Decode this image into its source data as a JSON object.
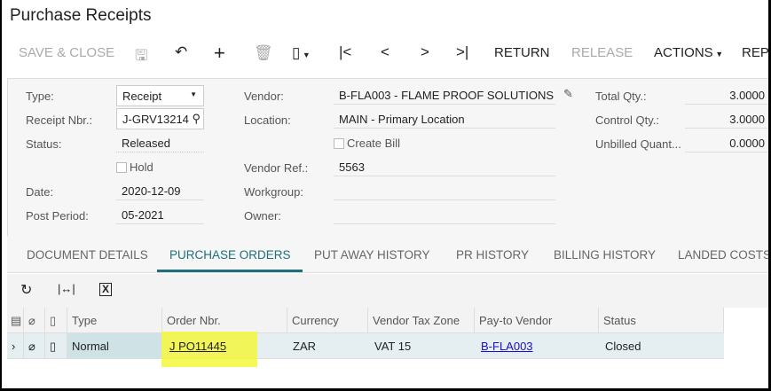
{
  "title": "Purchase Receipts",
  "toolbar": {
    "save_close": "SAVE & CLOSE",
    "return": "RETURN",
    "release": "RELEASE",
    "actions": "ACTIONS",
    "reports": "REP"
  },
  "form": {
    "type_label": "Type:",
    "type_value": "Receipt",
    "receipt_label": "Receipt Nbr.:",
    "receipt_value": "J-GRV13214",
    "status_label": "Status:",
    "status_value": "Released",
    "hold_label": "Hold",
    "date_label": "Date:",
    "date_value": "2020-12-09",
    "period_label": "Post Period:",
    "period_value": "05-2021",
    "vendor_label": "Vendor:",
    "vendor_value": "B-FLA003 - FLAME PROOF SOLUTIONS",
    "location_label": "Location:",
    "location_value": "MAIN - Primary Location",
    "create_bill_label": "Create Bill",
    "vendor_ref_label": "Vendor Ref.:",
    "vendor_ref_value": "5563",
    "workgroup_label": "Workgroup:",
    "owner_label": "Owner:",
    "total_qty_label": "Total Qty.:",
    "total_qty_value": "3.0000",
    "control_qty_label": "Control Qty.:",
    "control_qty_value": "3.0000",
    "unbilled_label": "Unbilled Quant...",
    "unbilled_value": "0.0000"
  },
  "tabs": [
    "DOCUMENT DETAILS",
    "PURCHASE ORDERS",
    "PUT AWAY HISTORY",
    "PR HISTORY",
    "BILLING HISTORY",
    "LANDED COSTS"
  ],
  "grid": {
    "headers": [
      "Type",
      "Order Nbr.",
      "Currency",
      "Vendor Tax Zone",
      "Pay-to Vendor",
      "Status"
    ],
    "rows": [
      [
        "Normal",
        "J PO11445",
        "ZAR",
        "VAT 15",
        "B-FLA003",
        "Closed"
      ]
    ]
  },
  "colors": {
    "accent": "#1f6f7a",
    "highlight": "#f4f63c",
    "link": "#1a0dcc"
  }
}
